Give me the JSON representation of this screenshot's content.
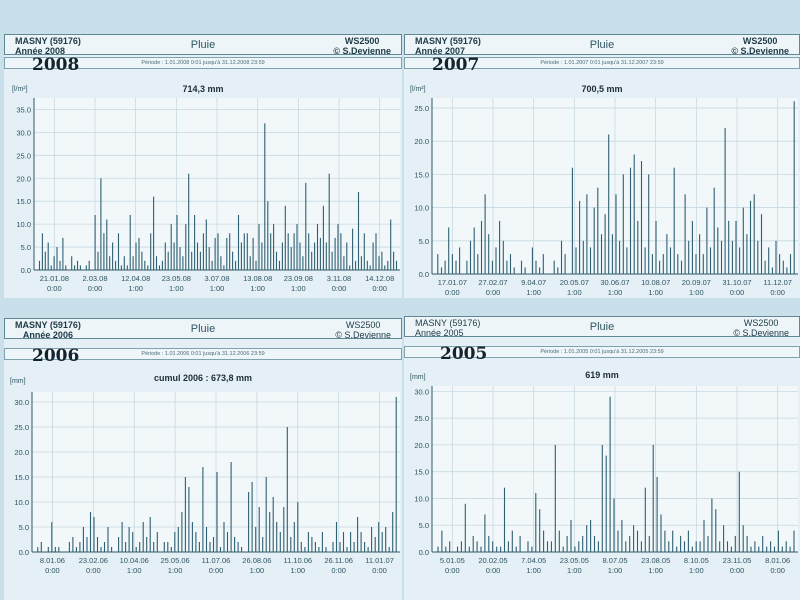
{
  "panels": [
    {
      "id": "p2008",
      "site": "MASNY (59176)",
      "year_label": "Année 2008",
      "title": "Pluie",
      "station": "WS2500",
      "author": "© S.Devienne",
      "period": "Période :  1.01.2008   0:01   jusqu'à  31.12.2008   23:59",
      "big_year": "2008",
      "plot_title": "714,3  mm",
      "unit": "[l/m²]"
    },
    {
      "id": "p2007",
      "site": "MASNY (59176)",
      "year_label": "Année 2007",
      "title": "Pluie",
      "station": "WS2500",
      "author": "© S.Devienne",
      "period": "Période :  1.01.2007   0:01   jusqu'à  31.12.2007   23:59",
      "big_year": "2007",
      "plot_title": "700,5 mm",
      "unit": "[l/m²]"
    },
    {
      "id": "p2006",
      "site": "MASNY (59176)",
      "year_label": "Année 2006",
      "title": "Pluie",
      "station": "WS2500",
      "author": "© S.Devienne",
      "period": "Période :  1.01.2006   0:01   jusqu'à  31.12.2006   23:59",
      "big_year": "2006",
      "plot_title": "cumul 2006 : 673,8 mm",
      "unit": "[mm]"
    },
    {
      "id": "p2005",
      "site": "MASNY (59176)",
      "year_label": "Année 2005",
      "title": "Pluie",
      "station": "WS2500",
      "author": "© S.Devienne",
      "period": "Période :  1.01.2005   0:01   jusqu'à  31.12.2005   23:59",
      "big_year": "2005",
      "plot_title": "619 mm",
      "unit": "[mm]"
    }
  ],
  "chart_data": [
    {
      "type": "bar",
      "title": "714,3  mm",
      "ylabel": "[l/m²]",
      "ylim": [
        0,
        37.5
      ],
      "yticks": [
        "0.0",
        "5.0",
        "10.0",
        "15.0",
        "20.0",
        "25.0",
        "30.0",
        "35.0"
      ],
      "xticks": [
        [
          "21.01.08",
          "0:00"
        ],
        [
          "2.03.08",
          "0:00"
        ],
        [
          "12.04.08",
          "1:00"
        ],
        [
          "23.05.08",
          "1:00"
        ],
        [
          "3.07.08",
          "1:00"
        ],
        [
          "13.08.08",
          "1:00"
        ],
        [
          "23.09.08",
          "1:00"
        ],
        [
          "3.11.08",
          "0:00"
        ],
        [
          "14.12.08",
          "0:00"
        ]
      ],
      "values": [
        2,
        8,
        4,
        6,
        1,
        3,
        5,
        2,
        7,
        1,
        0,
        3,
        1,
        2,
        1,
        0,
        1,
        2,
        0,
        12,
        4,
        20,
        8,
        11,
        3,
        6,
        2,
        8,
        1,
        3,
        1,
        12,
        3,
        6,
        7,
        4,
        2,
        1,
        8,
        16,
        3,
        1,
        2,
        6,
        4,
        10,
        6,
        12,
        5,
        3,
        10,
        21,
        4,
        12,
        6,
        4,
        8,
        11,
        5,
        2,
        7,
        8,
        3,
        1,
        7,
        8,
        4,
        2,
        12,
        6,
        8,
        8,
        3,
        7,
        2,
        10,
        6,
        32,
        15,
        8,
        10,
        4,
        2,
        6,
        14,
        8,
        5,
        8,
        10,
        6,
        3,
        19,
        8,
        4,
        6,
        10,
        7,
        14,
        6,
        21,
        4,
        7,
        10,
        8,
        3,
        6,
        1,
        9,
        2,
        17,
        3,
        8,
        2,
        1,
        6,
        8,
        3,
        4,
        1,
        2,
        11,
        4,
        2
      ]
    },
    {
      "type": "bar",
      "title": "700,5 mm",
      "ylabel": "[l/m²]",
      "ylim": [
        0,
        26.5
      ],
      "yticks": [
        "0.0",
        "5.0",
        "10.0",
        "15.0",
        "20.0",
        "25.0"
      ],
      "xticks": [
        [
          "17.01.07",
          "0:00"
        ],
        [
          "27.02.07",
          "0:00"
        ],
        [
          "9.04.07",
          "1:00"
        ],
        [
          "20.05.07",
          "1:00"
        ],
        [
          "30.06.07",
          "1:00"
        ],
        [
          "10.08.07",
          "1:00"
        ],
        [
          "20.09.07",
          "1:00"
        ],
        [
          "31.10.07",
          "0:00"
        ],
        [
          "11.12.07",
          "0:00"
        ]
      ],
      "values": [
        3,
        1,
        2,
        7,
        3,
        2,
        4,
        0,
        2,
        5,
        7,
        3,
        8,
        12,
        6,
        2,
        4,
        8,
        5,
        2,
        3,
        1,
        0,
        2,
        1,
        0,
        4,
        2,
        1,
        3,
        0,
        0,
        2,
        1,
        5,
        3,
        0,
        16,
        4,
        11,
        5,
        12,
        4,
        10,
        13,
        6,
        9,
        21,
        6,
        12,
        5,
        15,
        4,
        16,
        18,
        8,
        17,
        4,
        15,
        3,
        8,
        2,
        3,
        6,
        4,
        16,
        3,
        2,
        12,
        5,
        8,
        3,
        6,
        3,
        10,
        4,
        13,
        7,
        5,
        22,
        8,
        5,
        8,
        4,
        10,
        6,
        11,
        12,
        5,
        9,
        2,
        4,
        1,
        5,
        3,
        2,
        1,
        3,
        26
      ]
    },
    {
      "type": "bar",
      "title": "cumul 2006 : 673,8 mm",
      "ylabel": "[mm]",
      "ylim": [
        0,
        32
      ],
      "yticks": [
        "0.0",
        "5.0",
        "10.0",
        "15.0",
        "20.0",
        "25.0",
        "30.0"
      ],
      "xticks": [
        [
          "8.01.06",
          "0:00"
        ],
        [
          "23.02.06",
          "0:00"
        ],
        [
          "10.04.06",
          "1:00"
        ],
        [
          "25.05.06",
          "1:00"
        ],
        [
          "11.07.06",
          "0:00"
        ],
        [
          "26.08.06",
          "1:00"
        ],
        [
          "11.10.06",
          "1:00"
        ],
        [
          "26.11.06",
          "0:00"
        ],
        [
          "11.01.07",
          "0:00"
        ]
      ],
      "values": [
        1,
        2,
        0,
        1,
        6,
        1,
        1,
        0,
        0,
        2,
        3,
        1,
        2,
        5,
        3,
        8,
        7,
        3,
        1,
        2,
        5,
        1,
        0,
        3,
        6,
        2,
        5,
        4,
        1,
        2,
        6,
        3,
        7,
        2,
        4,
        0,
        2,
        2,
        1,
        4,
        5,
        8,
        15,
        13,
        6,
        4,
        2,
        17,
        5,
        2,
        3,
        16,
        1,
        6,
        4,
        18,
        3,
        2,
        1,
        0,
        12,
        14,
        5,
        9,
        3,
        15,
        8,
        11,
        6,
        4,
        9,
        25,
        3,
        6,
        10,
        2,
        1,
        4,
        3,
        2,
        1,
        4,
        1,
        0,
        2,
        6,
        2,
        4,
        1,
        4,
        2,
        7,
        4,
        2,
        1,
        5,
        3,
        6,
        4,
        5,
        1,
        8,
        31
      ]
    },
    {
      "type": "bar",
      "title": "619 mm",
      "ylabel": "[mm]",
      "ylim": [
        0,
        31
      ],
      "yticks": [
        "0.0",
        "5.0",
        "10.0",
        "15.0",
        "20.0",
        "25.0",
        "30.0"
      ],
      "xticks": [
        [
          "5.01.05",
          "0:00"
        ],
        [
          "20.02.05",
          "0:00"
        ],
        [
          "7.04.05",
          "1:00"
        ],
        [
          "23.05.05",
          "1:00"
        ],
        [
          "8.07.05",
          "1:00"
        ],
        [
          "23.08.05",
          "1:00"
        ],
        [
          "8.10.05",
          "1:00"
        ],
        [
          "23.11.05",
          "0:00"
        ],
        [
          "8.01.06",
          "0:00"
        ]
      ],
      "values": [
        1,
        4,
        1,
        2,
        0,
        1,
        2,
        9,
        1,
        3,
        2,
        1,
        7,
        3,
        2,
        1,
        1,
        12,
        2,
        4,
        1,
        3,
        0,
        2,
        1,
        11,
        8,
        4,
        2,
        2,
        20,
        4,
        1,
        3,
        6,
        1,
        2,
        3,
        5,
        6,
        3,
        2,
        20,
        18,
        29,
        10,
        4,
        6,
        2,
        3,
        5,
        4,
        2,
        12,
        3,
        20,
        14,
        7,
        4,
        2,
        4,
        1,
        3,
        2,
        4,
        1,
        2,
        2,
        6,
        3,
        10,
        8,
        2,
        5,
        2,
        1,
        3,
        15,
        5,
        3,
        1,
        2,
        1,
        3,
        1,
        2,
        1,
        4,
        1,
        2,
        1,
        4
      ]
    }
  ]
}
